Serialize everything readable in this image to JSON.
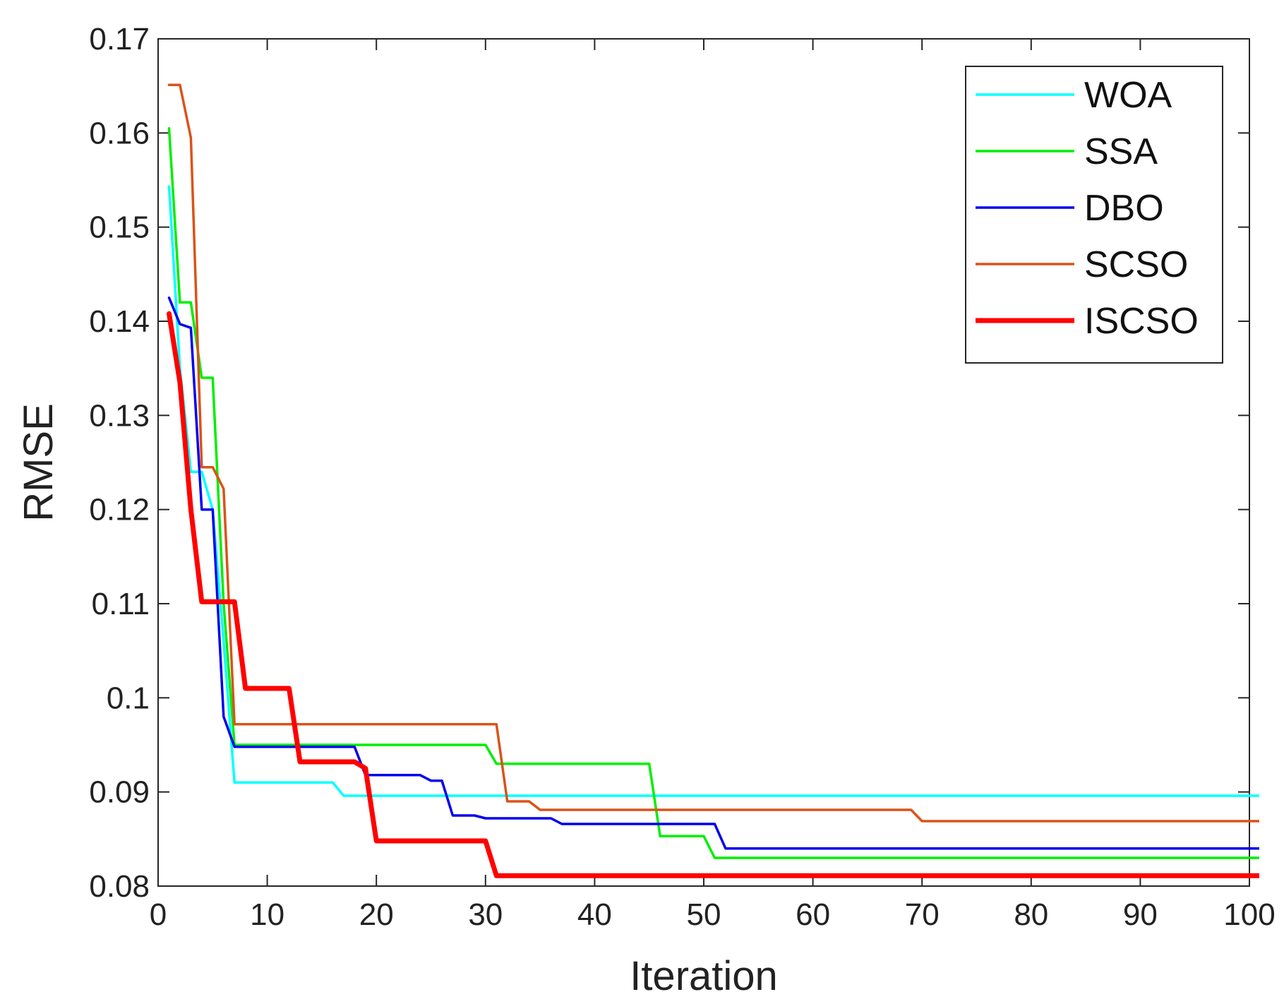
{
  "chart_data": {
    "type": "line",
    "title": "",
    "xlabel": "Iteration",
    "ylabel": "RMSE",
    "xlim": [
      0,
      100
    ],
    "ylim": [
      0.08,
      0.17
    ],
    "xticks": [
      0,
      10,
      20,
      30,
      40,
      50,
      60,
      70,
      80,
      90,
      100
    ],
    "xtick_labels": [
      "0",
      "10",
      "20",
      "30",
      "40",
      "50",
      "60",
      "70",
      "80",
      "90",
      "100"
    ],
    "yticks": [
      0.08,
      0.09,
      0.1,
      0.11,
      0.12,
      0.13,
      0.14,
      0.15,
      0.16,
      0.17
    ],
    "ytick_labels": [
      "0.08",
      "0.09",
      "0.1",
      "0.11",
      "0.12",
      "0.13",
      "0.14",
      "0.15",
      "0.16",
      "0.17"
    ],
    "grid": false,
    "legend_position": "top-right",
    "series": [
      {
        "name": "WOA",
        "color": "#00ffff",
        "points": [
          [
            1,
            0.1543
          ],
          [
            2,
            0.135
          ],
          [
            3,
            0.124
          ],
          [
            4,
            0.124
          ],
          [
            5,
            0.12
          ],
          [
            6,
            0.106
          ],
          [
            7,
            0.091
          ],
          [
            8,
            0.091
          ],
          [
            16,
            0.091
          ],
          [
            17,
            0.0896
          ],
          [
            101,
            0.0896
          ]
        ]
      },
      {
        "name": "SSA",
        "color": "#00ee00",
        "points": [
          [
            1,
            0.1605
          ],
          [
            2,
            0.142
          ],
          [
            3,
            0.142
          ],
          [
            4,
            0.134
          ],
          [
            5,
            0.134
          ],
          [
            6,
            0.11
          ],
          [
            7,
            0.095
          ],
          [
            30,
            0.095
          ],
          [
            31,
            0.093
          ],
          [
            45,
            0.093
          ],
          [
            46,
            0.0853
          ],
          [
            50,
            0.0853
          ],
          [
            51,
            0.083
          ],
          [
            101,
            0.083
          ]
        ]
      },
      {
        "name": "DBO",
        "color": "#0000ee",
        "points": [
          [
            1,
            0.1425
          ],
          [
            2,
            0.1397
          ],
          [
            3,
            0.1393
          ],
          [
            4,
            0.12
          ],
          [
            5,
            0.12
          ],
          [
            6,
            0.098
          ],
          [
            7,
            0.0948
          ],
          [
            18,
            0.0948
          ],
          [
            19,
            0.0918
          ],
          [
            24,
            0.0918
          ],
          [
            25,
            0.0912
          ],
          [
            26,
            0.0912
          ],
          [
            27,
            0.0875
          ],
          [
            29,
            0.0875
          ],
          [
            30,
            0.0872
          ],
          [
            36,
            0.0872
          ],
          [
            37,
            0.0866
          ],
          [
            51,
            0.0866
          ],
          [
            52,
            0.084
          ],
          [
            101,
            0.084
          ]
        ]
      },
      {
        "name": "SCSO",
        "color": "#d95319",
        "points": [
          [
            1,
            0.1651
          ],
          [
            2,
            0.1651
          ],
          [
            3,
            0.1595
          ],
          [
            4,
            0.1245
          ],
          [
            5,
            0.1245
          ],
          [
            6,
            0.1222
          ],
          [
            7,
            0.0972
          ],
          [
            31,
            0.0972
          ],
          [
            32,
            0.089
          ],
          [
            34,
            0.089
          ],
          [
            35,
            0.0881
          ],
          [
            69,
            0.0881
          ],
          [
            70,
            0.0869
          ],
          [
            101,
            0.0869
          ]
        ]
      },
      {
        "name": "ISCSO",
        "color": "#ff0000",
        "points": [
          [
            1,
            0.1408
          ],
          [
            2,
            0.1335
          ],
          [
            3,
            0.12
          ],
          [
            4,
            0.1102
          ],
          [
            7,
            0.1102
          ],
          [
            8,
            0.101
          ],
          [
            12,
            0.101
          ],
          [
            13,
            0.0932
          ],
          [
            18,
            0.0932
          ],
          [
            19,
            0.0925
          ],
          [
            20,
            0.0848
          ],
          [
            30,
            0.0848
          ],
          [
            31,
            0.0811
          ],
          [
            101,
            0.0811
          ]
        ]
      }
    ]
  }
}
